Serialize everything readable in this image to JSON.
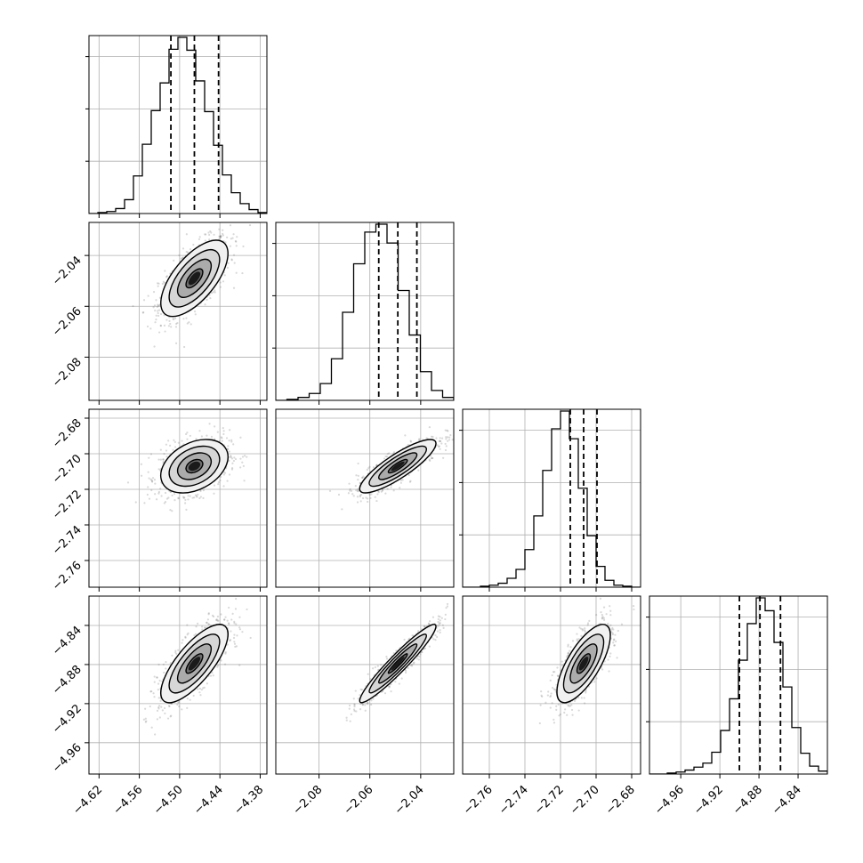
{
  "chart_data": {
    "type": "corner",
    "parameters": [
      {
        "ticks": [
          -4.62,
          -4.56,
          -4.5,
          -4.44,
          -4.38
        ],
        "tick_labels": [
          "−4.62",
          "−4.56",
          "−4.50",
          "−4.44",
          "−4.38"
        ],
        "range": [
          -4.635,
          -4.37
        ],
        "mean": -4.478,
        "sd": 0.025,
        "quantiles": [
          -4.513,
          -4.478,
          -4.442
        ],
        "histogram": [
          0,
          1,
          2,
          5,
          14,
          38,
          70,
          104,
          132,
          166,
          178,
          165,
          134,
          103,
          69,
          39,
          21,
          10,
          4,
          1
        ]
      },
      {
        "ticks": [
          -2.08,
          -2.06,
          -2.04
        ],
        "tick_labels": [
          "−2.08",
          "−2.06",
          "−2.04"
        ],
        "range": [
          -2.097,
          -2.027
        ],
        "mean": -2.049,
        "sd": 0.0075,
        "quantiles": [
          -2.0565,
          -2.049,
          -2.0415
        ],
        "histogram": [
          0,
          1,
          3,
          7,
          17,
          42,
          89,
          138,
          170,
          178,
          159,
          111,
          66,
          29,
          10,
          3
        ]
      },
      {
        "ticks": [
          -2.76,
          -2.74,
          -2.72,
          -2.7,
          -2.68
        ],
        "tick_labels": [
          "−2.76",
          "−2.74",
          "−2.72",
          "−2.70",
          "−2.68"
        ],
        "range": [
          -2.775,
          -2.675
        ],
        "mean": -2.707,
        "sd": 0.0075,
        "quantiles": [
          -2.7145,
          -2.707,
          -2.6995
        ],
        "histogram": [
          0,
          0,
          1,
          2,
          4,
          9,
          18,
          38,
          72,
          118,
          160,
          178,
          150,
          100,
          52,
          21,
          7,
          2,
          1,
          0
        ]
      },
      {
        "ticks": [
          -4.96,
          -4.92,
          -4.88,
          -4.84
        ],
        "tick_labels": [
          "−4.96",
          "−4.92",
          "−4.88",
          "−4.84"
        ],
        "range": [
          -4.992,
          -4.81
        ],
        "mean": -4.879,
        "sd": 0.02,
        "quantiles": [
          -4.9,
          -4.879,
          -4.858
        ],
        "histogram": [
          0,
          0,
          1,
          2,
          4,
          7,
          11,
          22,
          44,
          76,
          115,
          152,
          178,
          165,
          133,
          88,
          47,
          21,
          8,
          3
        ]
      }
    ],
    "correlations": [
      [
        1.0,
        0.65,
        0.35,
        0.75
      ],
      [
        0.65,
        1.0,
        0.85,
        0.95
      ],
      [
        0.35,
        0.85,
        1.0,
        0.72
      ],
      [
        0.75,
        0.95,
        0.72,
        1.0
      ]
    ],
    "contour_levels_sigma": [
      0.5,
      1.0,
      1.5,
      2.0
    ],
    "grid": true,
    "histogram_style": "step",
    "quantile_line_style": "dashed"
  },
  "colors": {
    "line": "#000000",
    "grid": "#b0b0b0",
    "points": "#666666",
    "density_low": "#f2f2f2",
    "density_high": "#000000"
  }
}
